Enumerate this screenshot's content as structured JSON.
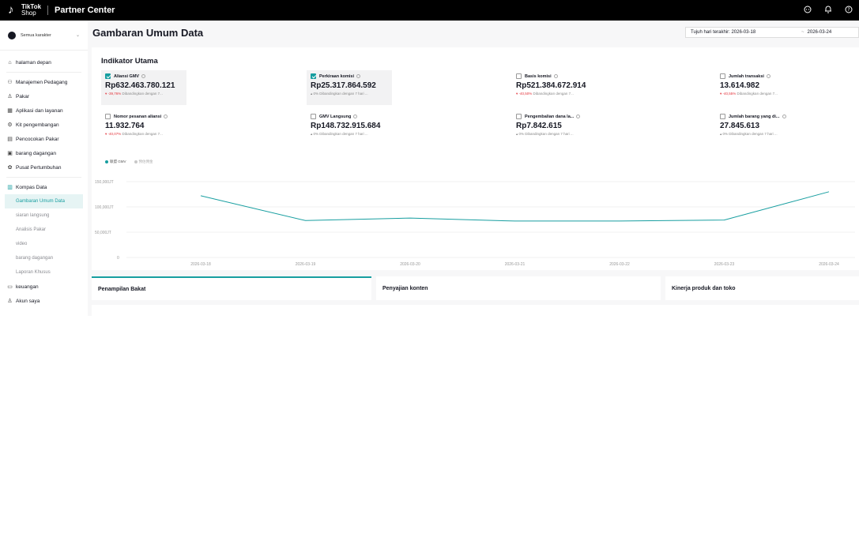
{
  "topbar": {
    "logo_line1": "TikTok",
    "logo_line2": "Shop",
    "title": "Partner Center",
    "icons": [
      "chat-icon",
      "bell-icon",
      "help-icon"
    ]
  },
  "sidebar": {
    "role_label": "Semua karakter",
    "items": [
      {
        "label": "halaman depan",
        "icon": "home-icon"
      },
      {
        "label": "Manajemen Pedagang",
        "icon": "users-icon"
      },
      {
        "label": "Pakar",
        "icon": "person-icon"
      },
      {
        "label": "Aplikasi dan layanan",
        "icon": "apps-icon"
      },
      {
        "label": "Kit pengembangan",
        "icon": "kit-icon"
      },
      {
        "label": "Pencocokan Pakar",
        "icon": "match-icon"
      },
      {
        "label": "barang dagangan",
        "icon": "box-icon"
      },
      {
        "label": "Pusat Pertumbuhan",
        "icon": "growth-icon"
      },
      {
        "label": "Kompas Data",
        "icon": "chart-icon"
      }
    ],
    "sub_items": [
      "Gambaran Umum Data",
      "siaran langsung",
      "Analisis Pakar",
      "video",
      "barang dagangan",
      "Laporan Khusus"
    ],
    "bottom_items": [
      {
        "label": "keuangan",
        "icon": "wallet-icon"
      },
      {
        "label": "Akun saya",
        "icon": "account-icon"
      }
    ]
  },
  "header": {
    "title": "Gambaran Umum Data",
    "date_start": "Tujuh hari terakhir: 2026-03-18",
    "date_sep": "~",
    "date_end": "2026-03-24"
  },
  "metrics": {
    "title": "Indikator Utama",
    "items": [
      {
        "label": "Aliansi GMV",
        "value": "Rp632.463.780.121",
        "change": "-39,76%",
        "trend": "down",
        "compare": "Dibandingkan dengan 7...",
        "checked": true,
        "selected": true
      },
      {
        "label": "Perkiraan komisi",
        "value": "Rp25.317.864.592",
        "change": "0%",
        "trend": "flat",
        "compare": "Dibandingkan dengan 7 hari ...",
        "checked": true,
        "selected": true
      },
      {
        "label": "Basis komisi",
        "value": "Rp521.384.672.914",
        "change": "-40,50%",
        "trend": "down",
        "compare": "Dibandingkan dengan 7...",
        "checked": false,
        "selected": false
      },
      {
        "label": "Jumlah transaksi",
        "value": "13.614.982",
        "change": "-40,55%",
        "trend": "down",
        "compare": "Dibandingkan dengan 7...",
        "checked": false,
        "selected": false
      },
      {
        "label": "Nomor pesanan aliansi",
        "value": "11.932.764",
        "change": "-40,07%",
        "trend": "down",
        "compare": "Dibandingkan dengan 7...",
        "checked": false,
        "selected": false
      },
      {
        "label": "GMV Langsung",
        "value": "Rp148.732.915.684",
        "change": "0%",
        "trend": "flat",
        "compare": "Dibandingkan dengan 7 hari ...",
        "checked": false,
        "selected": false
      },
      {
        "label": "Pengembalian dana la...",
        "value": "Rp7.842.615",
        "change": "0%",
        "trend": "flat",
        "compare": "Dibandingkan dengan 7 hari ...",
        "checked": false,
        "selected": false
      },
      {
        "label": "Jumlah barang yang di...",
        "value": "27.845.613",
        "change": "0%",
        "trend": "flat",
        "compare": "Dibandingkan dengan 7 hari ...",
        "checked": false,
        "selected": false
      }
    ]
  },
  "chart_data": {
    "type": "line",
    "legend": [
      {
        "name": "联盟 GMV",
        "color": "#179ea0"
      },
      {
        "name": "预估佣金",
        "color": "#c8c8c8"
      }
    ],
    "categories": [
      "2026-03-18",
      "2026-03-19",
      "2026-03-20",
      "2026-03-21",
      "2026-03-22",
      "2026-03-23",
      "2026-03-24"
    ],
    "series": [
      {
        "name": "联盟 GMV",
        "color": "#179ea0",
        "values": [
          122000,
          73000,
          78000,
          72000,
          72000,
          74000,
          130000
        ]
      }
    ],
    "yticks": [
      0,
      50000,
      100000,
      150000
    ],
    "ytick_labels": [
      "0",
      "50,000JT",
      "100,000JT",
      "150,000JT"
    ],
    "ylim": [
      0,
      150000
    ],
    "grid": true,
    "legend_position": "top-left"
  },
  "tabs": [
    {
      "label": "Penampilan Bakat",
      "active": true
    },
    {
      "label": "Penyajian konten",
      "active": false
    },
    {
      "label": "Kinerja produk dan toko",
      "active": false
    }
  ],
  "colors": {
    "accent": "#179ea0",
    "down": "#e3323a"
  }
}
